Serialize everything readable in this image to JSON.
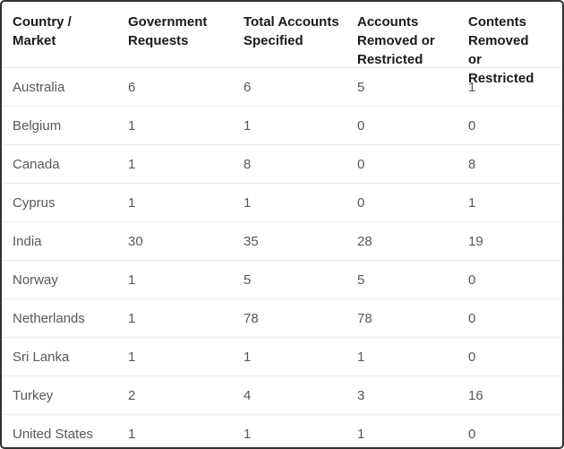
{
  "chart_data": {
    "type": "table",
    "columns": [
      "Country / Market",
      "Government Requests",
      "Total Accounts Specified",
      "Accounts Removed or Restricted",
      "Contents Removed or Restricted"
    ],
    "rows": [
      [
        "Australia",
        6,
        6,
        5,
        1
      ],
      [
        "Belgium",
        1,
        1,
        0,
        0
      ],
      [
        "Canada",
        1,
        8,
        0,
        8
      ],
      [
        "Cyprus",
        1,
        1,
        0,
        1
      ],
      [
        "India",
        30,
        35,
        28,
        19
      ],
      [
        "Norway",
        1,
        5,
        5,
        0
      ],
      [
        "Netherlands",
        1,
        78,
        78,
        0
      ],
      [
        "Sri Lanka",
        1,
        1,
        1,
        0
      ],
      [
        "Turkey",
        2,
        4,
        3,
        16
      ],
      [
        "United States",
        1,
        1,
        1,
        0
      ]
    ],
    "title": "",
    "legend": "none",
    "grid": "faint horizontal row dividers"
  },
  "colors": {
    "header_text": "#1a1a1a",
    "body_text": "#54585c",
    "outer_border": "#323232",
    "row_divider": "#ebebeb",
    "background": "#ffffff"
  }
}
